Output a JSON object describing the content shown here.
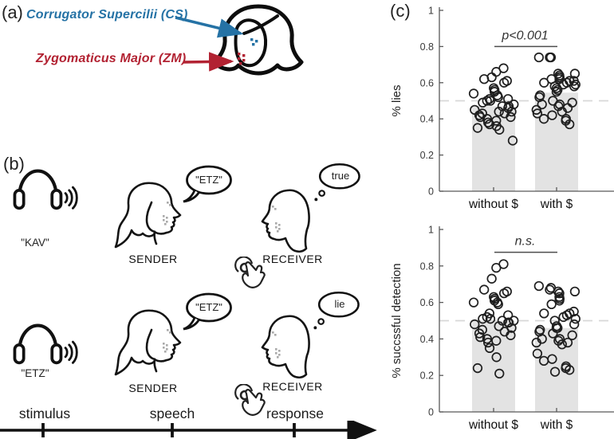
{
  "figure": {
    "panel_a": {
      "label": "(a)",
      "cs": {
        "text": "Corrugator Supercilii (CS)",
        "color": "#2572a5"
      },
      "zm": {
        "text": "Zygomaticus Major (ZM)",
        "color": "#b22232"
      },
      "electrode_dot_colors": {
        "cs": "#2572a5",
        "zm": "#b22232"
      }
    },
    "panel_b": {
      "label": "(b)",
      "sender_label": "SENDER",
      "receiver_label": "RECEIVER",
      "rows": [
        {
          "stimulus": "\"KAV\"",
          "speech": "\"ETZ\"",
          "response": "true"
        },
        {
          "stimulus": "\"ETZ\"",
          "speech": "\"ETZ\"",
          "response": "lie"
        }
      ],
      "timeline": {
        "labels": [
          "stimulus",
          "speech",
          "response"
        ]
      }
    },
    "panel_c": {
      "label": "(c)"
    }
  },
  "icons": [
    "headphones-icon",
    "sound-waves-icon",
    "speech-bubble-icon",
    "thought-bubble-icon",
    "tap-hand-icon",
    "sender-head-icon",
    "receiver-head-icon",
    "face-icon",
    "cs-arrow-icon",
    "zm-arrow-icon",
    "timeline-arrow-icon"
  ],
  "chart_data": [
    {
      "type": "bar",
      "title": "",
      "xlabel": "",
      "ylabel": "% lies",
      "categories": [
        "without $",
        "with $"
      ],
      "series": [
        {
          "name": "without $",
          "bar": 0.47,
          "points": [
            0.68,
            0.66,
            0.63,
            0.62,
            0.61,
            0.6,
            0.57,
            0.56,
            0.55,
            0.54,
            0.53,
            0.52,
            0.51,
            0.51,
            0.5,
            0.5,
            0.49,
            0.48,
            0.47,
            0.47,
            0.46,
            0.45,
            0.44,
            0.44,
            0.43,
            0.43,
            0.42,
            0.41,
            0.41,
            0.4,
            0.39,
            0.38,
            0.37,
            0.36,
            0.35,
            0.34,
            0.28
          ]
        },
        {
          "name": "with $",
          "bar": 0.545,
          "points": [
            0.74,
            0.74,
            0.74,
            0.65,
            0.65,
            0.64,
            0.63,
            0.63,
            0.62,
            0.62,
            0.61,
            0.61,
            0.6,
            0.6,
            0.59,
            0.59,
            0.58,
            0.58,
            0.57,
            0.56,
            0.55,
            0.53,
            0.52,
            0.5,
            0.49,
            0.48,
            0.48,
            0.47,
            0.46,
            0.45,
            0.44,
            0.43,
            0.42,
            0.4,
            0.4,
            0.39,
            0.37
          ]
        }
      ],
      "ylim": [
        0,
        1
      ],
      "yticks": [
        0,
        0.2,
        0.4,
        0.6,
        0.8,
        1
      ],
      "ytick_labels": [
        "0",
        "0.2",
        "0.4",
        "0.6",
        "0.8",
        "1"
      ],
      "reference_line": 0.5,
      "significance": {
        "label": "p<0.001",
        "line_y": 0.8
      },
      "bar_color": "#e3e3e3",
      "grid": false,
      "legend": false
    },
    {
      "type": "bar",
      "title": "",
      "xlabel": "",
      "ylabel": "% succssful detection",
      "categories": [
        "without $",
        "with $"
      ],
      "series": [
        {
          "name": "without $",
          "bar": 0.5,
          "points": [
            0.81,
            0.79,
            0.73,
            0.67,
            0.66,
            0.65,
            0.63,
            0.62,
            0.61,
            0.6,
            0.6,
            0.59,
            0.54,
            0.53,
            0.52,
            0.51,
            0.51,
            0.5,
            0.5,
            0.49,
            0.49,
            0.48,
            0.47,
            0.46,
            0.45,
            0.44,
            0.43,
            0.42,
            0.41,
            0.4,
            0.39,
            0.38,
            0.35,
            0.3,
            0.24,
            0.21
          ]
        },
        {
          "name": "with $",
          "bar": 0.46,
          "points": [
            0.69,
            0.68,
            0.67,
            0.66,
            0.66,
            0.65,
            0.63,
            0.62,
            0.61,
            0.59,
            0.55,
            0.54,
            0.54,
            0.53,
            0.52,
            0.51,
            0.5,
            0.48,
            0.47,
            0.46,
            0.46,
            0.45,
            0.44,
            0.43,
            0.42,
            0.4,
            0.4,
            0.39,
            0.38,
            0.38,
            0.37,
            0.32,
            0.29,
            0.28,
            0.25,
            0.24,
            0.23,
            0.22
          ]
        }
      ],
      "ylim": [
        0,
        1
      ],
      "yticks": [
        0,
        0.2,
        0.4,
        0.6,
        0.8,
        1
      ],
      "ytick_labels": [
        "0",
        "0.2",
        "0.4",
        "0.6",
        "0.8",
        "1"
      ],
      "reference_line": 0.5,
      "significance": {
        "label": "n.s.",
        "line_y": 0.875
      },
      "bar_color": "#e3e3e3",
      "grid": false,
      "legend": false
    }
  ]
}
